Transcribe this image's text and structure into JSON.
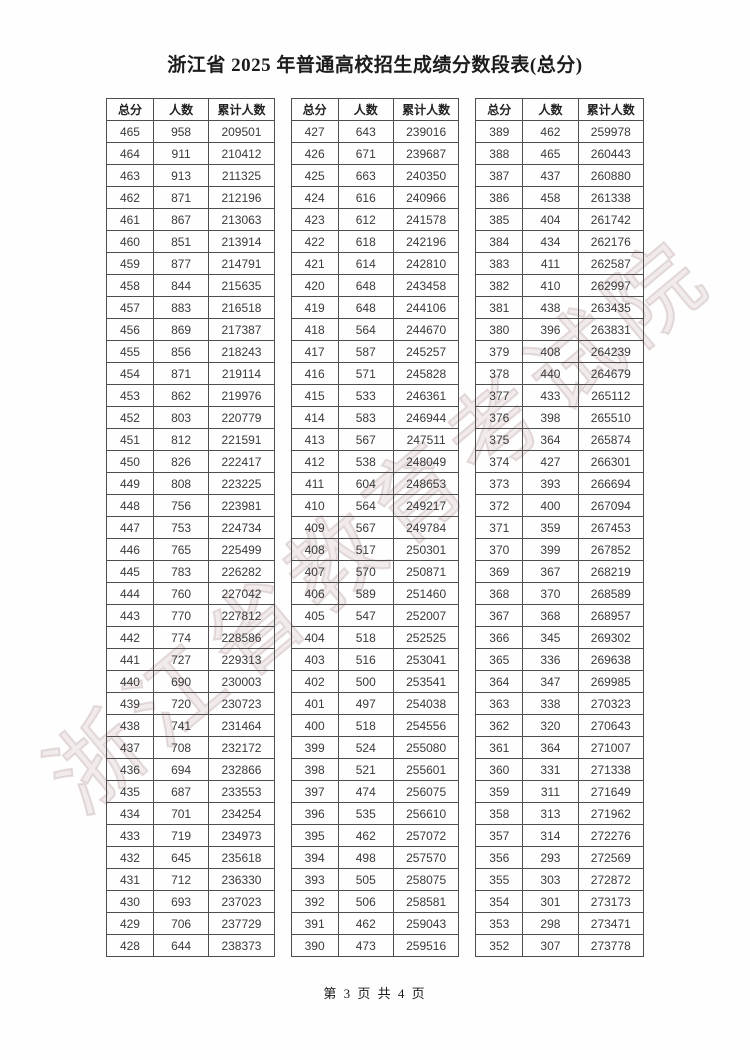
{
  "title": "浙江省 2025 年普通高校招生成绩分数段表(总分)",
  "watermark": "浙江省教育考试院",
  "footer": "第 3 页 共 4 页",
  "columns": [
    "总分",
    "人数",
    "累计人数"
  ],
  "tables": [
    {
      "rows": [
        [
          465,
          958,
          209501
        ],
        [
          464,
          911,
          210412
        ],
        [
          463,
          913,
          211325
        ],
        [
          462,
          871,
          212196
        ],
        [
          461,
          867,
          213063
        ],
        [
          460,
          851,
          213914
        ],
        [
          459,
          877,
          214791
        ],
        [
          458,
          844,
          215635
        ],
        [
          457,
          883,
          216518
        ],
        [
          456,
          869,
          217387
        ],
        [
          455,
          856,
          218243
        ],
        [
          454,
          871,
          219114
        ],
        [
          453,
          862,
          219976
        ],
        [
          452,
          803,
          220779
        ],
        [
          451,
          812,
          221591
        ],
        [
          450,
          826,
          222417
        ],
        [
          449,
          808,
          223225
        ],
        [
          448,
          756,
          223981
        ],
        [
          447,
          753,
          224734
        ],
        [
          446,
          765,
          225499
        ],
        [
          445,
          783,
          226282
        ],
        [
          444,
          760,
          227042
        ],
        [
          443,
          770,
          227812
        ],
        [
          442,
          774,
          228586
        ],
        [
          441,
          727,
          229313
        ],
        [
          440,
          690,
          230003
        ],
        [
          439,
          720,
          230723
        ],
        [
          438,
          741,
          231464
        ],
        [
          437,
          708,
          232172
        ],
        [
          436,
          694,
          232866
        ],
        [
          435,
          687,
          233553
        ],
        [
          434,
          701,
          234254
        ],
        [
          433,
          719,
          234973
        ],
        [
          432,
          645,
          235618
        ],
        [
          431,
          712,
          236330
        ],
        [
          430,
          693,
          237023
        ],
        [
          429,
          706,
          237729
        ],
        [
          428,
          644,
          238373
        ]
      ]
    },
    {
      "rows": [
        [
          427,
          643,
          239016
        ],
        [
          426,
          671,
          239687
        ],
        [
          425,
          663,
          240350
        ],
        [
          424,
          616,
          240966
        ],
        [
          423,
          612,
          241578
        ],
        [
          422,
          618,
          242196
        ],
        [
          421,
          614,
          242810
        ],
        [
          420,
          648,
          243458
        ],
        [
          419,
          648,
          244106
        ],
        [
          418,
          564,
          244670
        ],
        [
          417,
          587,
          245257
        ],
        [
          416,
          571,
          245828
        ],
        [
          415,
          533,
          246361
        ],
        [
          414,
          583,
          246944
        ],
        [
          413,
          567,
          247511
        ],
        [
          412,
          538,
          248049
        ],
        [
          411,
          604,
          248653
        ],
        [
          410,
          564,
          249217
        ],
        [
          409,
          567,
          249784
        ],
        [
          408,
          517,
          250301
        ],
        [
          407,
          570,
          250871
        ],
        [
          406,
          589,
          251460
        ],
        [
          405,
          547,
          252007
        ],
        [
          404,
          518,
          252525
        ],
        [
          403,
          516,
          253041
        ],
        [
          402,
          500,
          253541
        ],
        [
          401,
          497,
          254038
        ],
        [
          400,
          518,
          254556
        ],
        [
          399,
          524,
          255080
        ],
        [
          398,
          521,
          255601
        ],
        [
          397,
          474,
          256075
        ],
        [
          396,
          535,
          256610
        ],
        [
          395,
          462,
          257072
        ],
        [
          394,
          498,
          257570
        ],
        [
          393,
          505,
          258075
        ],
        [
          392,
          506,
          258581
        ],
        [
          391,
          462,
          259043
        ],
        [
          390,
          473,
          259516
        ]
      ]
    },
    {
      "rows": [
        [
          389,
          462,
          259978
        ],
        [
          388,
          465,
          260443
        ],
        [
          387,
          437,
          260880
        ],
        [
          386,
          458,
          261338
        ],
        [
          385,
          404,
          261742
        ],
        [
          384,
          434,
          262176
        ],
        [
          383,
          411,
          262587
        ],
        [
          382,
          410,
          262997
        ],
        [
          381,
          438,
          263435
        ],
        [
          380,
          396,
          263831
        ],
        [
          379,
          408,
          264239
        ],
        [
          378,
          440,
          264679
        ],
        [
          377,
          433,
          265112
        ],
        [
          376,
          398,
          265510
        ],
        [
          375,
          364,
          265874
        ],
        [
          374,
          427,
          266301
        ],
        [
          373,
          393,
          266694
        ],
        [
          372,
          400,
          267094
        ],
        [
          371,
          359,
          267453
        ],
        [
          370,
          399,
          267852
        ],
        [
          369,
          367,
          268219
        ],
        [
          368,
          370,
          268589
        ],
        [
          367,
          368,
          268957
        ],
        [
          366,
          345,
          269302
        ],
        [
          365,
          336,
          269638
        ],
        [
          364,
          347,
          269985
        ],
        [
          363,
          338,
          270323
        ],
        [
          362,
          320,
          270643
        ],
        [
          361,
          364,
          271007
        ],
        [
          360,
          331,
          271338
        ],
        [
          359,
          311,
          271649
        ],
        [
          358,
          313,
          271962
        ],
        [
          357,
          314,
          272276
        ],
        [
          356,
          293,
          272569
        ],
        [
          355,
          303,
          272872
        ],
        [
          354,
          301,
          273173
        ],
        [
          353,
          298,
          273471
        ],
        [
          352,
          307,
          273778
        ]
      ]
    }
  ]
}
